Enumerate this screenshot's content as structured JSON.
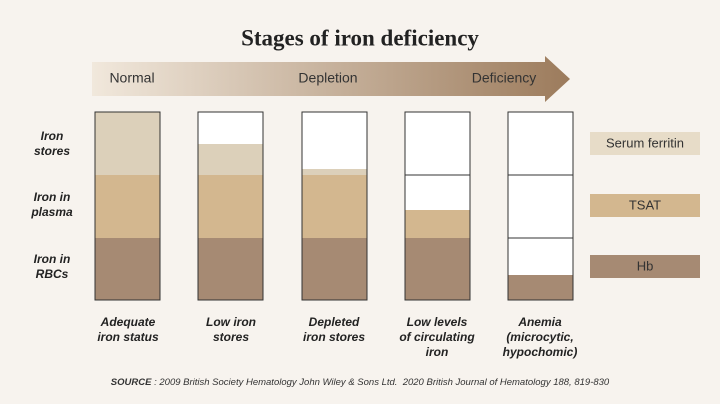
{
  "title": "Stages of iron deficiency",
  "arrow_labels": [
    "Normal",
    "Depletion",
    "Deficiency"
  ],
  "rows": [
    [
      "Iron",
      "stores"
    ],
    [
      "Iron in",
      "plasma"
    ],
    [
      "Iron in",
      "RBCs"
    ]
  ],
  "columns": [
    [
      "Adequate",
      "iron status"
    ],
    [
      "Low iron",
      "stores"
    ],
    [
      "Depleted",
      "iron stores"
    ],
    [
      "Low levels",
      "of circulating",
      "iron"
    ],
    [
      "Anemia",
      "(microcytic,",
      "hypochomic)"
    ]
  ],
  "legend": [
    "Serum ferritin",
    "TSAT",
    "Hb"
  ],
  "source": {
    "label": "SOURCE",
    "text": " : 2009 British Society Hematology John Wiley & Sons Ltd.  2020 British Journal of Hematology 188, 819-830"
  }
}
